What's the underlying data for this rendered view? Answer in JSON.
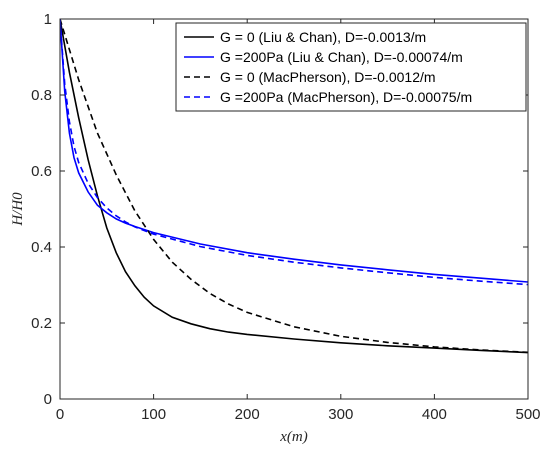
{
  "chart_data": {
    "type": "line",
    "xlabel": "x(m)",
    "ylabel": "H/H0",
    "xlim": [
      0,
      500
    ],
    "ylim": [
      0,
      1
    ],
    "xticks": [
      0,
      100,
      200,
      300,
      400,
      500
    ],
    "yticks": [
      0,
      0.2,
      0.4,
      0.6,
      0.8,
      1
    ],
    "xtick_labels": [
      "0",
      "100",
      "200",
      "300",
      "400",
      "500"
    ],
    "ytick_labels": [
      "0",
      "0.2",
      "0.4",
      "0.6",
      "0.8",
      "1"
    ],
    "grid": false,
    "legend_position": "top-right",
    "series": [
      {
        "name": "G = 0 (Liu & Chan), D=-0.0013/m",
        "color": "#000000",
        "dash": "solid",
        "x": [
          0,
          10,
          20,
          30,
          40,
          50,
          60,
          70,
          80,
          90,
          100,
          120,
          140,
          160,
          180,
          200,
          250,
          300,
          350,
          400,
          450,
          500
        ],
        "y": [
          1.0,
          0.86,
          0.74,
          0.63,
          0.535,
          0.45,
          0.385,
          0.335,
          0.298,
          0.268,
          0.245,
          0.215,
          0.198,
          0.185,
          0.176,
          0.17,
          0.158,
          0.148,
          0.14,
          0.134,
          0.128,
          0.122
        ]
      },
      {
        "name": "G =200Pa (Liu & Chan), D=-0.00074/m",
        "color": "#0000FF",
        "dash": "solid",
        "x": [
          0,
          5,
          10,
          15,
          20,
          30,
          40,
          50,
          60,
          70,
          80,
          100,
          150,
          200,
          250,
          300,
          350,
          400,
          450,
          500
        ],
        "y": [
          1.0,
          0.81,
          0.7,
          0.635,
          0.595,
          0.545,
          0.51,
          0.49,
          0.474,
          0.463,
          0.454,
          0.438,
          0.408,
          0.385,
          0.368,
          0.353,
          0.34,
          0.328,
          0.318,
          0.308
        ]
      },
      {
        "name": "G = 0 (MacPherson), D=-0.0012/m",
        "color": "#000000",
        "dash": "dashed",
        "x": [
          0,
          20,
          40,
          60,
          80,
          100,
          120,
          140,
          160,
          180,
          200,
          250,
          300,
          350,
          400,
          450,
          500
        ],
        "y": [
          1.0,
          0.84,
          0.7,
          0.59,
          0.495,
          0.42,
          0.36,
          0.315,
          0.278,
          0.25,
          0.228,
          0.19,
          0.165,
          0.149,
          0.137,
          0.129,
          0.123
        ]
      },
      {
        "name": "G =200Pa (MacPherson), D=-0.00075/m",
        "color": "#0000FF",
        "dash": "dashed",
        "x": [
          0,
          5,
          10,
          15,
          20,
          30,
          40,
          50,
          60,
          70,
          80,
          100,
          150,
          200,
          250,
          300,
          350,
          400,
          450,
          500
        ],
        "y": [
          1.0,
          0.83,
          0.73,
          0.665,
          0.622,
          0.568,
          0.53,
          0.503,
          0.482,
          0.466,
          0.453,
          0.434,
          0.401,
          0.378,
          0.36,
          0.345,
          0.332,
          0.32,
          0.31,
          0.301
        ]
      }
    ]
  }
}
